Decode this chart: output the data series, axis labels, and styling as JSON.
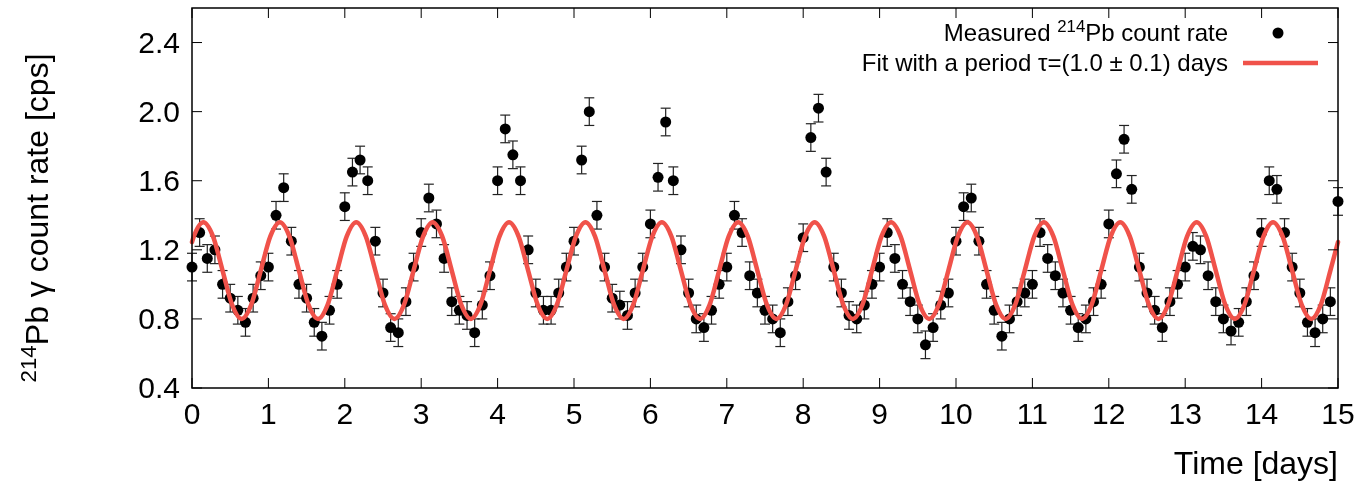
{
  "chart_data": {
    "type": "scatter",
    "xlabel": "Time [days]",
    "ylabel": "$^{214}$Pb γ count rate [cps]",
    "xlim": [
      0,
      15
    ],
    "ylim": [
      0.4,
      2.6
    ],
    "xticks": [
      0,
      1,
      2,
      3,
      4,
      5,
      6,
      7,
      8,
      9,
      10,
      11,
      12,
      13,
      14,
      15
    ],
    "yticks": [
      0.4,
      0.8,
      1.2,
      1.6,
      {
        "value": 2,
        "label": "2.0"
      },
      2.4
    ],
    "grid": false,
    "legend": "top right",
    "series": [
      {
        "name": "Measured $^{214}$Pb count rate",
        "color": "#000000",
        "marker": "circle",
        "x": [
          0,
          0.1,
          0.2,
          0.3,
          0.4,
          0.5,
          0.6,
          0.7,
          0.8,
          0.9,
          1,
          1.1,
          1.2,
          1.3,
          1.4,
          1.5,
          1.6,
          1.7,
          1.8,
          1.9,
          2,
          2.1,
          2.2,
          2.3,
          2.4,
          2.5,
          2.6,
          2.7,
          2.8,
          2.9,
          3,
          3.1,
          3.2,
          3.3,
          3.4,
          3.5,
          3.6,
          3.7,
          3.8,
          3.9,
          4,
          4.1,
          4.2,
          4.3,
          4.4,
          4.5,
          4.6,
          4.7,
          4.8,
          4.9,
          5,
          5.1,
          5.2,
          5.3,
          5.4,
          5.5,
          5.6,
          5.7,
          5.8,
          5.9,
          6,
          6.1,
          6.2,
          6.3,
          6.4,
          6.5,
          6.6,
          6.7,
          6.8,
          6.9,
          7,
          7.1,
          7.2,
          7.3,
          7.4,
          7.5,
          7.6,
          7.7,
          7.8,
          7.9,
          8,
          8.1,
          8.2,
          8.3,
          8.4,
          8.5,
          8.6,
          8.7,
          8.8,
          8.9,
          9,
          9.1,
          9.2,
          9.3,
          9.4,
          9.5,
          9.6,
          9.7,
          9.8,
          9.9,
          10,
          10.1,
          10.2,
          10.3,
          10.4,
          10.5,
          10.6,
          10.7,
          10.8,
          10.9,
          11,
          11.1,
          11.2,
          11.3,
          11.4,
          11.5,
          11.6,
          11.7,
          11.8,
          11.9,
          12,
          12.1,
          12.2,
          12.3,
          12.4,
          12.5,
          12.6,
          12.7,
          12.8,
          12.9,
          13,
          13.1,
          13.2,
          13.3,
          13.4,
          13.5,
          13.6,
          13.7,
          13.8,
          13.9,
          14,
          14.1,
          14.2,
          14.3,
          14.4,
          14.5,
          14.6,
          14.7,
          14.8,
          14.9,
          15
        ],
        "values": [
          1.1,
          1.3,
          1.15,
          1.2,
          1.0,
          0.92,
          0.85,
          0.78,
          0.92,
          1.05,
          1.1,
          1.4,
          1.56,
          1.25,
          1.0,
          0.92,
          0.78,
          0.7,
          0.85,
          1.0,
          1.45,
          1.65,
          1.72,
          1.6,
          1.25,
          0.95,
          0.75,
          0.72,
          0.9,
          1.1,
          1.3,
          1.5,
          1.35,
          1.15,
          0.9,
          0.85,
          0.82,
          0.72,
          0.88,
          1.05,
          1.6,
          1.9,
          1.75,
          1.6,
          1.2,
          0.95,
          0.85,
          0.85,
          0.95,
          1.1,
          1.25,
          1.72,
          2.0,
          1.4,
          1.1,
          0.92,
          0.88,
          0.82,
          0.95,
          1.1,
          1.35,
          1.62,
          1.94,
          1.6,
          1.2,
          0.95,
          0.8,
          0.75,
          0.85,
          1.0,
          1.1,
          1.4,
          1.3,
          1.05,
          0.95,
          0.85,
          0.8,
          0.72,
          0.9,
          1.05,
          1.27,
          1.85,
          2.02,
          1.65,
          1.1,
          0.95,
          0.82,
          0.8,
          0.88,
          1.0,
          1.1,
          1.3,
          1.15,
          1.0,
          0.9,
          0.8,
          0.65,
          0.75,
          0.88,
          0.95,
          1.25,
          1.45,
          1.5,
          1.25,
          1.0,
          0.85,
          0.7,
          0.8,
          0.9,
          0.95,
          1.0,
          1.3,
          1.15,
          1.05,
          0.95,
          0.85,
          0.75,
          0.8,
          0.9,
          1.0,
          1.35,
          1.64,
          1.84,
          1.55,
          1.1,
          0.95,
          0.85,
          0.75,
          0.9,
          1.0,
          1.1,
          1.22,
          1.2,
          1.05,
          0.9,
          0.8,
          0.73,
          0.78,
          0.9,
          1.05,
          1.3,
          1.6,
          1.55,
          1.3,
          1.1,
          0.95,
          0.78,
          0.72,
          0.8,
          0.9,
          1.48
        ],
        "errors": [
          0.08,
          0.08,
          0.08,
          0.08,
          0.08,
          0.08,
          0.08,
          0.08,
          0.08,
          0.08,
          0.08,
          0.08,
          0.08,
          0.08,
          0.08,
          0.08,
          0.08,
          0.08,
          0.08,
          0.08,
          0.08,
          0.08,
          0.08,
          0.08,
          0.08,
          0.08,
          0.08,
          0.08,
          0.08,
          0.08,
          0.08,
          0.08,
          0.08,
          0.08,
          0.08,
          0.08,
          0.08,
          0.08,
          0.08,
          0.08,
          0.08,
          0.08,
          0.08,
          0.08,
          0.08,
          0.08,
          0.08,
          0.08,
          0.08,
          0.08,
          0.08,
          0.08,
          0.08,
          0.08,
          0.08,
          0.08,
          0.08,
          0.08,
          0.08,
          0.08,
          0.08,
          0.08,
          0.08,
          0.08,
          0.08,
          0.08,
          0.08,
          0.08,
          0.08,
          0.08,
          0.08,
          0.08,
          0.08,
          0.08,
          0.08,
          0.08,
          0.08,
          0.08,
          0.08,
          0.08,
          0.08,
          0.08,
          0.08,
          0.08,
          0.08,
          0.08,
          0.08,
          0.08,
          0.08,
          0.08,
          0.08,
          0.08,
          0.08,
          0.08,
          0.08,
          0.08,
          0.08,
          0.08,
          0.08,
          0.08,
          0.08,
          0.08,
          0.08,
          0.08,
          0.08,
          0.08,
          0.08,
          0.08,
          0.08,
          0.08,
          0.08,
          0.08,
          0.08,
          0.08,
          0.08,
          0.08,
          0.08,
          0.08,
          0.08,
          0.08,
          0.08,
          0.08,
          0.08,
          0.08,
          0.08,
          0.08,
          0.08,
          0.08,
          0.08,
          0.08,
          0.08,
          0.08,
          0.08,
          0.08,
          0.08,
          0.08,
          0.08,
          0.08,
          0.08,
          0.08,
          0.08,
          0.08,
          0.08,
          0.08,
          0.08,
          0.08,
          0.08,
          0.08,
          0.08,
          0.08,
          0.08
        ]
      },
      {
        "name": "Fit with a period τ=(1.0 ± 0.1) days",
        "type": "line",
        "color": "#f0524a",
        "line_style": "solid",
        "marker": "none",
        "x": [
          0,
          0.025,
          0.15,
          0.275,
          0.4,
          0.525,
          0.65,
          0.775,
          0.9,
          1.025,
          1.15,
          1.275,
          1.4,
          1.525,
          1.65,
          1.775,
          1.9,
          2.025,
          2.15,
          2.275,
          2.4,
          2.525,
          2.65,
          2.775,
          2.9,
          3.025,
          3.15,
          3.275,
          3.4,
          3.525,
          3.65,
          3.775,
          3.9,
          4.025,
          4.15,
          4.275,
          4.4,
          4.525,
          4.65,
          4.775,
          4.9,
          5.025,
          5.15,
          5.275,
          5.4,
          5.525,
          5.65,
          5.775,
          5.9,
          6.025,
          6.15,
          6.275,
          6.4,
          6.525,
          6.65,
          6.775,
          6.9,
          7.025,
          7.15,
          7.275,
          7.4,
          7.525,
          7.65,
          7.775,
          7.9,
          8.025,
          8.15,
          8.275,
          8.4,
          8.525,
          8.65,
          8.775,
          8.9,
          9.025,
          9.15,
          9.275,
          9.4,
          9.525,
          9.65,
          9.775,
          9.9,
          10.025,
          10.15,
          10.275,
          10.4,
          10.525,
          10.65,
          10.775,
          10.9,
          11.025,
          11.15,
          11.275,
          11.4,
          11.525,
          11.65,
          11.775,
          11.9,
          12.025,
          12.15,
          12.275,
          12.4,
          12.525,
          12.65,
          12.775,
          12.9,
          13.025,
          13.15,
          13.275,
          13.4,
          13.525,
          13.65,
          13.775,
          13.9,
          14.025,
          14.15,
          14.275,
          14.4,
          14.525,
          14.65,
          14.775,
          14.9,
          15
        ],
        "values": [
          1.245,
          1.278,
          1.36,
          1.278,
          1.08,
          0.882,
          0.8,
          0.882,
          1.08,
          1.278,
          1.36,
          1.278,
          1.08,
          0.882,
          0.8,
          0.882,
          1.08,
          1.278,
          1.36,
          1.278,
          1.08,
          0.882,
          0.8,
          0.882,
          1.08,
          1.278,
          1.36,
          1.278,
          1.08,
          0.882,
          0.8,
          0.882,
          1.08,
          1.278,
          1.36,
          1.278,
          1.08,
          0.882,
          0.8,
          0.882,
          1.08,
          1.278,
          1.36,
          1.278,
          1.08,
          0.882,
          0.8,
          0.882,
          1.08,
          1.278,
          1.36,
          1.278,
          1.08,
          0.882,
          0.8,
          0.882,
          1.08,
          1.278,
          1.36,
          1.278,
          1.08,
          0.882,
          0.8,
          0.882,
          1.08,
          1.278,
          1.36,
          1.278,
          1.08,
          0.882,
          0.8,
          0.882,
          1.08,
          1.278,
          1.36,
          1.278,
          1.08,
          0.882,
          0.8,
          0.882,
          1.08,
          1.278,
          1.36,
          1.278,
          1.08,
          0.882,
          0.8,
          0.882,
          1.08,
          1.278,
          1.36,
          1.278,
          1.08,
          0.882,
          0.8,
          0.882,
          1.08,
          1.278,
          1.36,
          1.278,
          1.08,
          0.882,
          0.8,
          0.882,
          1.08,
          1.278,
          1.36,
          1.278,
          1.08,
          0.882,
          0.8,
          0.882,
          1.08,
          1.278,
          1.36,
          1.278,
          1.08,
          0.882,
          0.8,
          0.882,
          1.08,
          1.245
        ]
      }
    ]
  }
}
